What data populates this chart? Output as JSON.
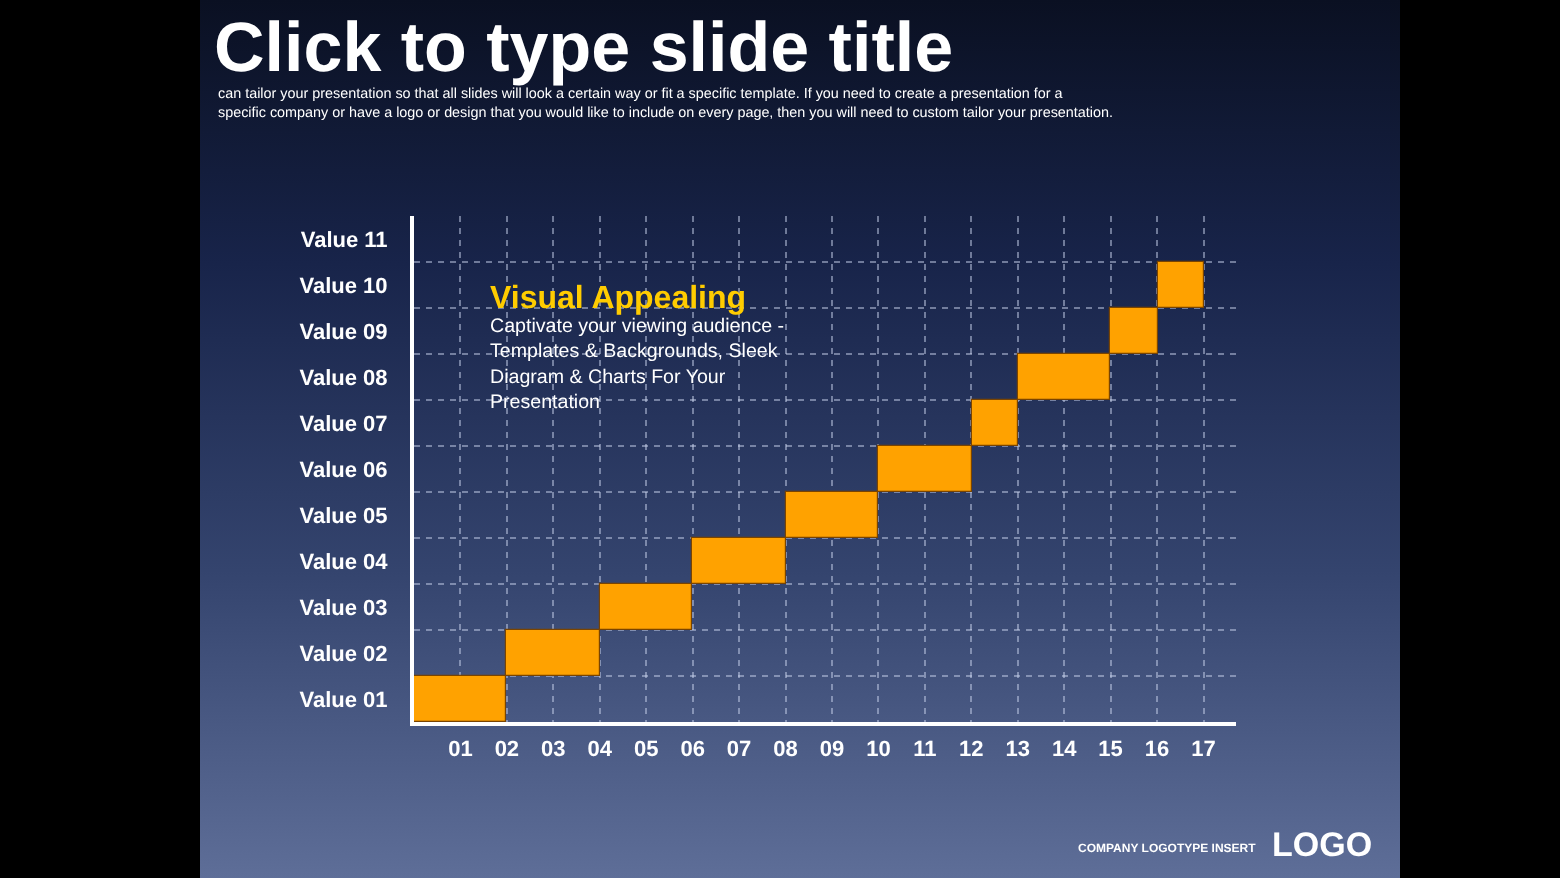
{
  "chart_data": {
    "type": "bar",
    "orientation": "horizontal",
    "title": "Click to type slide title",
    "subtitle": "can tailor your presentation so that all slides will look a certain way or fit a specific template. If you need to create a presentation for a specific company or have a logo or design that you would like to include on every page, then you will need to custom tailor your presentation.",
    "categories": [
      "Value 11",
      "Value 10",
      "Value 09",
      "Value 08",
      "Value 07",
      "Value 06",
      "Value 05",
      "Value 04",
      "Value 03",
      "Value 02",
      "Value 01"
    ],
    "values": [
      null,
      1,
      1,
      2,
      1,
      2,
      2,
      2,
      2,
      2,
      2
    ],
    "base": [
      null,
      16,
      15,
      13,
      12,
      10,
      8,
      6,
      4,
      2,
      0
    ],
    "color": "#ffa200",
    "xlim": [
      0,
      17.7
    ],
    "xticks": [
      {
        "value": 1,
        "label": "01"
      },
      {
        "value": 2,
        "label": "02"
      },
      {
        "value": 3,
        "label": "03"
      },
      {
        "value": 4,
        "label": "04"
      },
      {
        "value": 5,
        "label": "05"
      },
      {
        "value": 6,
        "label": "06"
      },
      {
        "value": 7,
        "label": "07"
      },
      {
        "value": 8,
        "label": "08"
      },
      {
        "value": 9,
        "label": "09"
      },
      {
        "value": 10,
        "label": "10"
      },
      {
        "value": 11,
        "label": "11"
      },
      {
        "value": 12,
        "label": "12"
      },
      {
        "value": 13,
        "label": "13"
      },
      {
        "value": 14,
        "label": "14"
      },
      {
        "value": 15,
        "label": "15"
      },
      {
        "value": 16,
        "label": "16"
      },
      {
        "value": 17,
        "label": "17"
      }
    ],
    "grid": true,
    "annotations": [
      "Visual Appealing",
      "Captivate your viewing audience - Templates & Backgrounds, Sleek Diagram & Charts For Your Presentation",
      "COMPANY LOGOTYPE INSERT",
      "LOGO"
    ]
  }
}
